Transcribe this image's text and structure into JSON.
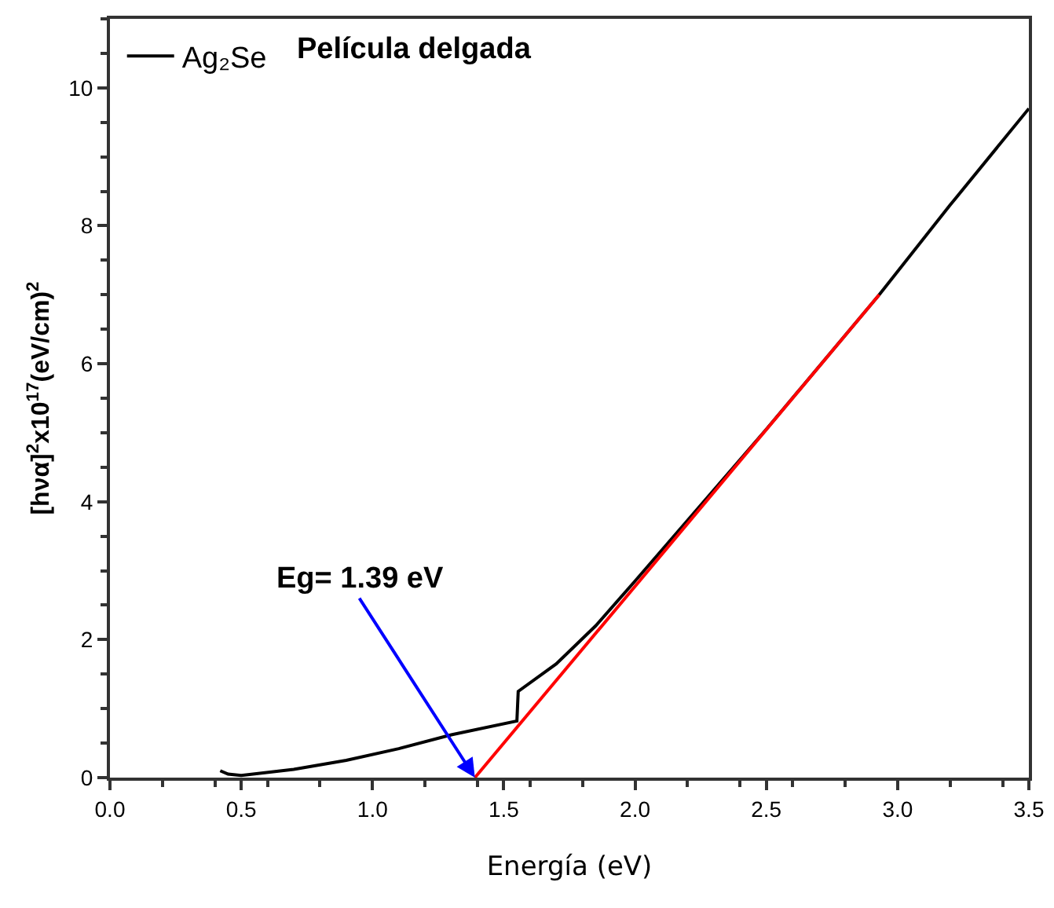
{
  "chart_data": {
    "type": "line",
    "xlabel": "Energía (eV)",
    "ylabel": "[hνα]$^{2}$x10$^{17}$(eV/cm)$^{2}$",
    "xlim": [
      0,
      3.5
    ],
    "xticks": [
      {
        "value": 0,
        "label": "0.0"
      },
      {
        "value": 0.5,
        "label": "0.5"
      },
      {
        "value": 1,
        "label": "1.0"
      },
      {
        "value": 1.5,
        "label": "1.5"
      },
      {
        "value": 2,
        "label": "2.0"
      },
      {
        "value": 2.5,
        "label": "2.5"
      },
      {
        "value": 3,
        "label": "3.0"
      },
      {
        "value": 3.5,
        "label": "3.5"
      }
    ],
    "ylim": [
      0,
      11
    ],
    "yticks": [
      0,
      2,
      4,
      6,
      8,
      10
    ],
    "grid": false,
    "legend": "top left",
    "marker": "none",
    "line_style": "solid",
    "series": [
      {
        "name": "Ag₂Se",
        "color": "#000000",
        "x": [
          0.42,
          0.45,
          0.5,
          0.7,
          0.9,
          1.1,
          1.3,
          1.55,
          1.555,
          1.7,
          1.85,
          2.0,
          2.5,
          2.93,
          3.2,
          3.5
        ],
        "values": [
          0.1,
          0.05,
          0.03,
          0.12,
          0.25,
          0.42,
          0.62,
          0.82,
          1.25,
          1.65,
          2.2,
          2.85,
          5.05,
          7.0,
          8.3,
          9.7
        ]
      },
      {
        "color": "#ff0000",
        "x": [
          1.39,
          2.93
        ],
        "values": [
          0,
          7.0
        ]
      }
    ],
    "annotations": [
      "Película delgada",
      {
        "text": "Eg= 1.39 eV",
        "x": 1.39,
        "y": 0
      }
    ]
  }
}
